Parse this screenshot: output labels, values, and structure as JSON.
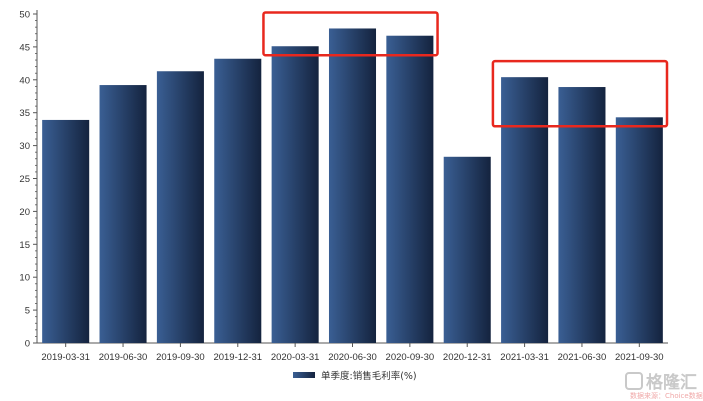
{
  "chart_data": {
    "type": "bar",
    "categories": [
      "2019-03-31",
      "2019-06-30",
      "2019-09-30",
      "2019-12-31",
      "2020-03-31",
      "2020-06-30",
      "2020-09-30",
      "2020-12-31",
      "2021-03-31",
      "2021-06-30",
      "2021-09-30"
    ],
    "series": [
      {
        "name": "单季度:销售毛利率(%)",
        "values": [
          33.9,
          39.2,
          41.3,
          43.2,
          45.1,
          47.8,
          46.7,
          28.3,
          40.4,
          38.9,
          34.3
        ]
      }
    ],
    "title": "",
    "xlabel": "",
    "ylabel": "",
    "ylim": [
      0,
      50
    ],
    "yticks": [
      0,
      5,
      10,
      15,
      20,
      25,
      30,
      35,
      40,
      45,
      50
    ],
    "grid": false,
    "legend_position": "bottom-center",
    "annotations": [
      {
        "type": "highlight-box",
        "color": "#e8281e",
        "covers": [
          "2020-03-31",
          "2020-06-30",
          "2020-09-30"
        ]
      },
      {
        "type": "highlight-box",
        "color": "#e8281e",
        "covers": [
          "2021-03-31",
          "2021-06-30",
          "2021-09-30"
        ]
      }
    ],
    "colors": {
      "bar_light": "#3a5f94",
      "bar_dark": "#14233e",
      "axis": "#555555",
      "highlight": "#e8281e"
    }
  },
  "watermark": {
    "logo_text": "格隆汇",
    "sub_text": "数据来源：Choice数据"
  }
}
